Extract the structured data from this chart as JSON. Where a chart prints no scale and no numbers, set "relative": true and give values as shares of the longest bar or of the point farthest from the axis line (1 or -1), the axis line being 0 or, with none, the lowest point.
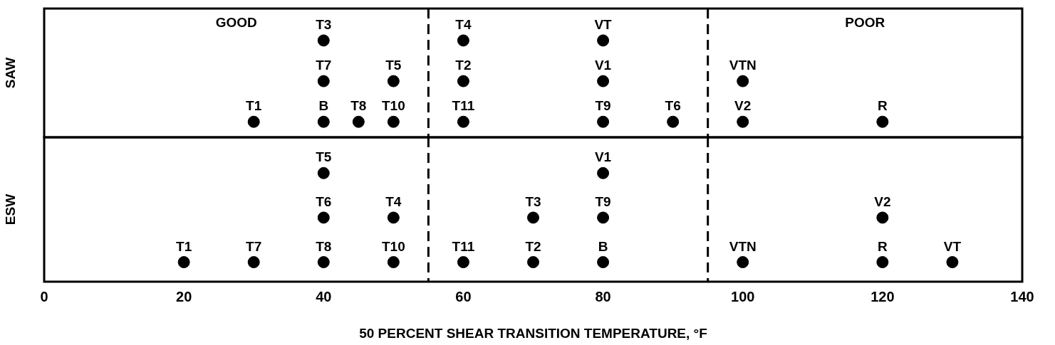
{
  "chart_data": [
    {
      "type": "scatter",
      "ylabel": "SAW",
      "relative": true,
      "marker": "circle",
      "grid": false,
      "legend": false,
      "tick_labels": false,
      "xlim": [
        0,
        140
      ],
      "xticks": [
        0,
        20,
        40,
        60,
        80,
        100,
        120,
        140
      ],
      "series": [
        {
          "color": "#000000",
          "x": [
            30,
            40,
            45,
            50,
            60,
            80,
            90,
            100,
            120,
            40,
            50,
            60,
            80,
            100,
            40,
            60,
            80
          ],
          "values": [
            0.16,
            0.16,
            0.16,
            0.16,
            0.16,
            0.16,
            0.16,
            0.16,
            0.16,
            0.58,
            0.58,
            0.58,
            0.58,
            0.58,
            1,
            1,
            1
          ]
        }
      ],
      "ref_lines": [
        {
          "axis": "x",
          "value": 55,
          "line_style": "dashed",
          "color": "#000000"
        },
        {
          "axis": "x",
          "value": 95,
          "line_style": "dashed",
          "color": "#000000"
        }
      ],
      "annotations": [
        {
          "text": "T1",
          "x": 30,
          "y": 0.16
        },
        {
          "text": "B",
          "x": 40,
          "y": 0.16
        },
        {
          "text": "T8",
          "x": 45,
          "y": 0.16
        },
        {
          "text": "T10",
          "x": 50,
          "y": 0.16
        },
        {
          "text": "T11",
          "x": 60,
          "y": 0.16
        },
        {
          "text": "T9",
          "x": 80,
          "y": 0.16
        },
        {
          "text": "T6",
          "x": 90,
          "y": 0.16
        },
        {
          "text": "V2",
          "x": 100,
          "y": 0.16
        },
        {
          "text": "R",
          "x": 120,
          "y": 0.16
        },
        {
          "text": "T7",
          "x": 40,
          "y": 0.58
        },
        {
          "text": "T5",
          "x": 50,
          "y": 0.58
        },
        {
          "text": "T2",
          "x": 60,
          "y": 0.58
        },
        {
          "text": "V1",
          "x": 80,
          "y": 0.58
        },
        {
          "text": "VTN",
          "x": 100,
          "y": 0.58
        },
        {
          "text": "T3",
          "x": 40,
          "y": 1
        },
        {
          "text": "T4",
          "x": 60,
          "y": 1
        },
        {
          "text": "VT",
          "x": 80,
          "y": 1
        },
        "GOOD",
        "POOR"
      ]
    },
    {
      "type": "scatter",
      "ylabel": "ESW",
      "xlabel": "50 PERCENT SHEAR TRANSITION TEMPERATURE, °F",
      "relative": true,
      "marker": "circle",
      "grid": false,
      "legend": false,
      "tick_labels": "x",
      "xlim": [
        0,
        140
      ],
      "xticks": [
        0,
        20,
        40,
        60,
        80,
        100,
        120,
        140
      ],
      "series": [
        {
          "color": "#000000",
          "x": [
            20,
            30,
            40,
            50,
            60,
            70,
            80,
            100,
            120,
            130,
            40,
            50,
            70,
            80,
            120,
            40,
            80
          ],
          "values": [
            0.18,
            0.18,
            0.18,
            0.18,
            0.18,
            0.18,
            0.18,
            0.18,
            0.18,
            0.18,
            0.59,
            0.59,
            0.59,
            0.59,
            0.59,
            1,
            1
          ]
        }
      ],
      "ref_lines": [
        {
          "axis": "x",
          "value": 55,
          "line_style": "dashed",
          "color": "#000000"
        },
        {
          "axis": "x",
          "value": 95,
          "line_style": "dashed",
          "color": "#000000"
        }
      ],
      "annotations": [
        {
          "text": "T1",
          "x": 20,
          "y": 0.18
        },
        {
          "text": "T7",
          "x": 30,
          "y": 0.18
        },
        {
          "text": "T8",
          "x": 40,
          "y": 0.18
        },
        {
          "text": "T10",
          "x": 50,
          "y": 0.18
        },
        {
          "text": "T11",
          "x": 60,
          "y": 0.18
        },
        {
          "text": "T2",
          "x": 70,
          "y": 0.18
        },
        {
          "text": "B",
          "x": 80,
          "y": 0.18
        },
        {
          "text": "VTN",
          "x": 100,
          "y": 0.18
        },
        {
          "text": "R",
          "x": 120,
          "y": 0.18
        },
        {
          "text": "VT",
          "x": 130,
          "y": 0.18
        },
        {
          "text": "T6",
          "x": 40,
          "y": 0.59
        },
        {
          "text": "T4",
          "x": 50,
          "y": 0.59
        },
        {
          "text": "T3",
          "x": 70,
          "y": 0.59
        },
        {
          "text": "T9",
          "x": 80,
          "y": 0.59
        },
        {
          "text": "V2",
          "x": 120,
          "y": 0.59
        },
        {
          "text": "T5",
          "x": 40,
          "y": 1
        },
        {
          "text": "V1",
          "x": 80,
          "y": 1
        }
      ]
    }
  ]
}
